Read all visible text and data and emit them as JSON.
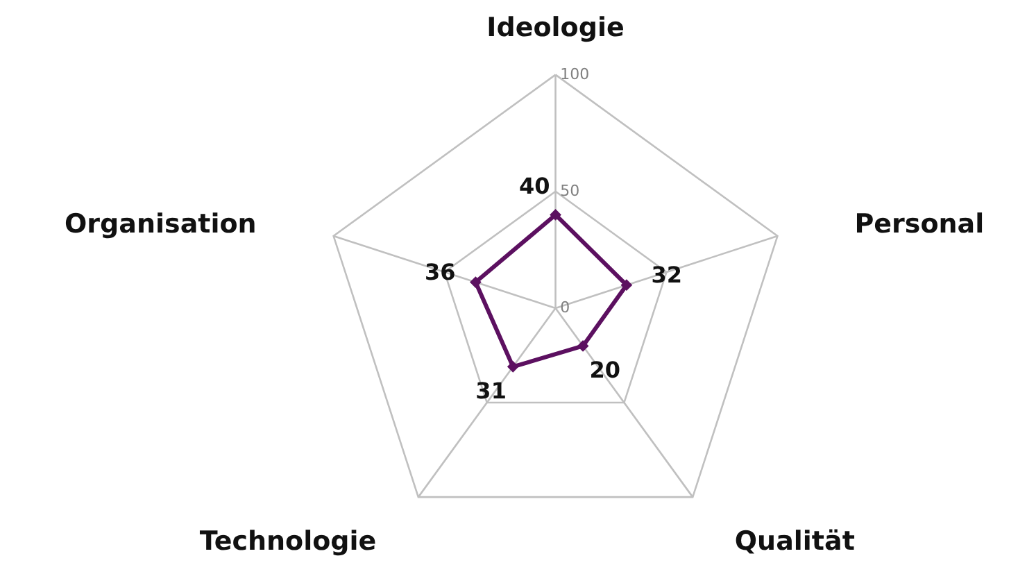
{
  "chart_data": {
    "type": "radar",
    "categories": [
      "Ideologie",
      "Personal",
      "Qualität",
      "Technologie",
      "Organisation"
    ],
    "series": [
      {
        "color": "#5c1060",
        "values": [
          40,
          32,
          20,
          31,
          36
        ]
      }
    ],
    "ylim": [
      0,
      100
    ],
    "yticks": [
      0,
      50,
      100
    ],
    "grid": true,
    "marker": "diamond",
    "data_labels": true
  }
}
